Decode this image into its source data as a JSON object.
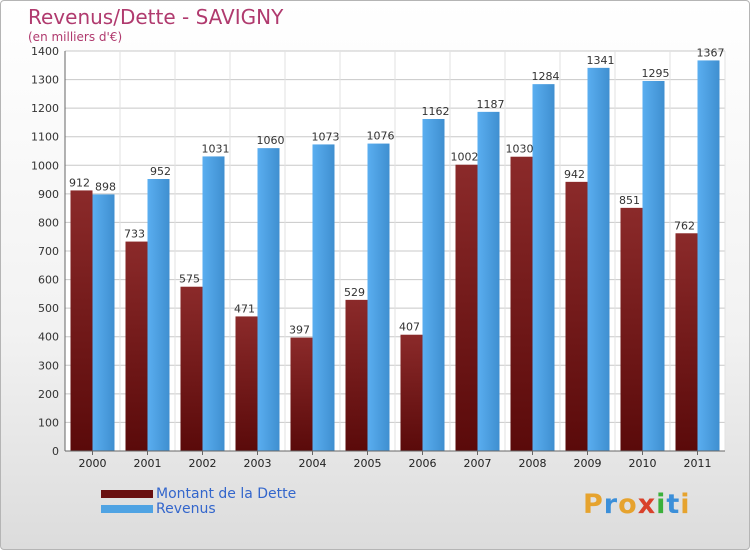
{
  "title": "Revenus/Dette - SAVIGNY",
  "subtitle": "(en milliers d'€)",
  "logo": "Proxiti",
  "colors": {
    "dette": "#8b1f1f",
    "revenus": "#4fa3e3",
    "title": "#b03a6e",
    "legend_text": "#3366cc"
  },
  "chart_data": {
    "type": "bar",
    "categories": [
      "2000",
      "2001",
      "2002",
      "2003",
      "2004",
      "2005",
      "2006",
      "2007",
      "2008",
      "2009",
      "2010",
      "2011"
    ],
    "series": [
      {
        "name": "Montant de la Dette",
        "values": [
          912,
          733,
          575,
          471,
          397,
          529,
          407,
          1002,
          1030,
          942,
          851,
          762
        ],
        "labels": [
          "912",
          "733",
          "575",
          "471",
          "397",
          "529",
          "407",
          "1002",
          "1030",
          "942",
          "851",
          "762"
        ]
      },
      {
        "name": "Revenus",
        "values": [
          898,
          952,
          1031,
          1060,
          1073,
          1076,
          1162,
          1187,
          1284,
          1341,
          1295,
          1367
        ],
        "labels": [
          "898",
          "952",
          "1031",
          "1060",
          "1073",
          "1076",
          "1162",
          "1187",
          "1284",
          "1341",
          "1295",
          "1367"
        ]
      }
    ],
    "ylim": [
      0,
      1400
    ],
    "yticks": [
      0,
      100,
      200,
      300,
      400,
      500,
      600,
      700,
      800,
      900,
      1000,
      1100,
      1200,
      1300,
      1400
    ],
    "ylabel": "",
    "xlabel": "",
    "grid": true,
    "legend_position": "bottom-left"
  }
}
